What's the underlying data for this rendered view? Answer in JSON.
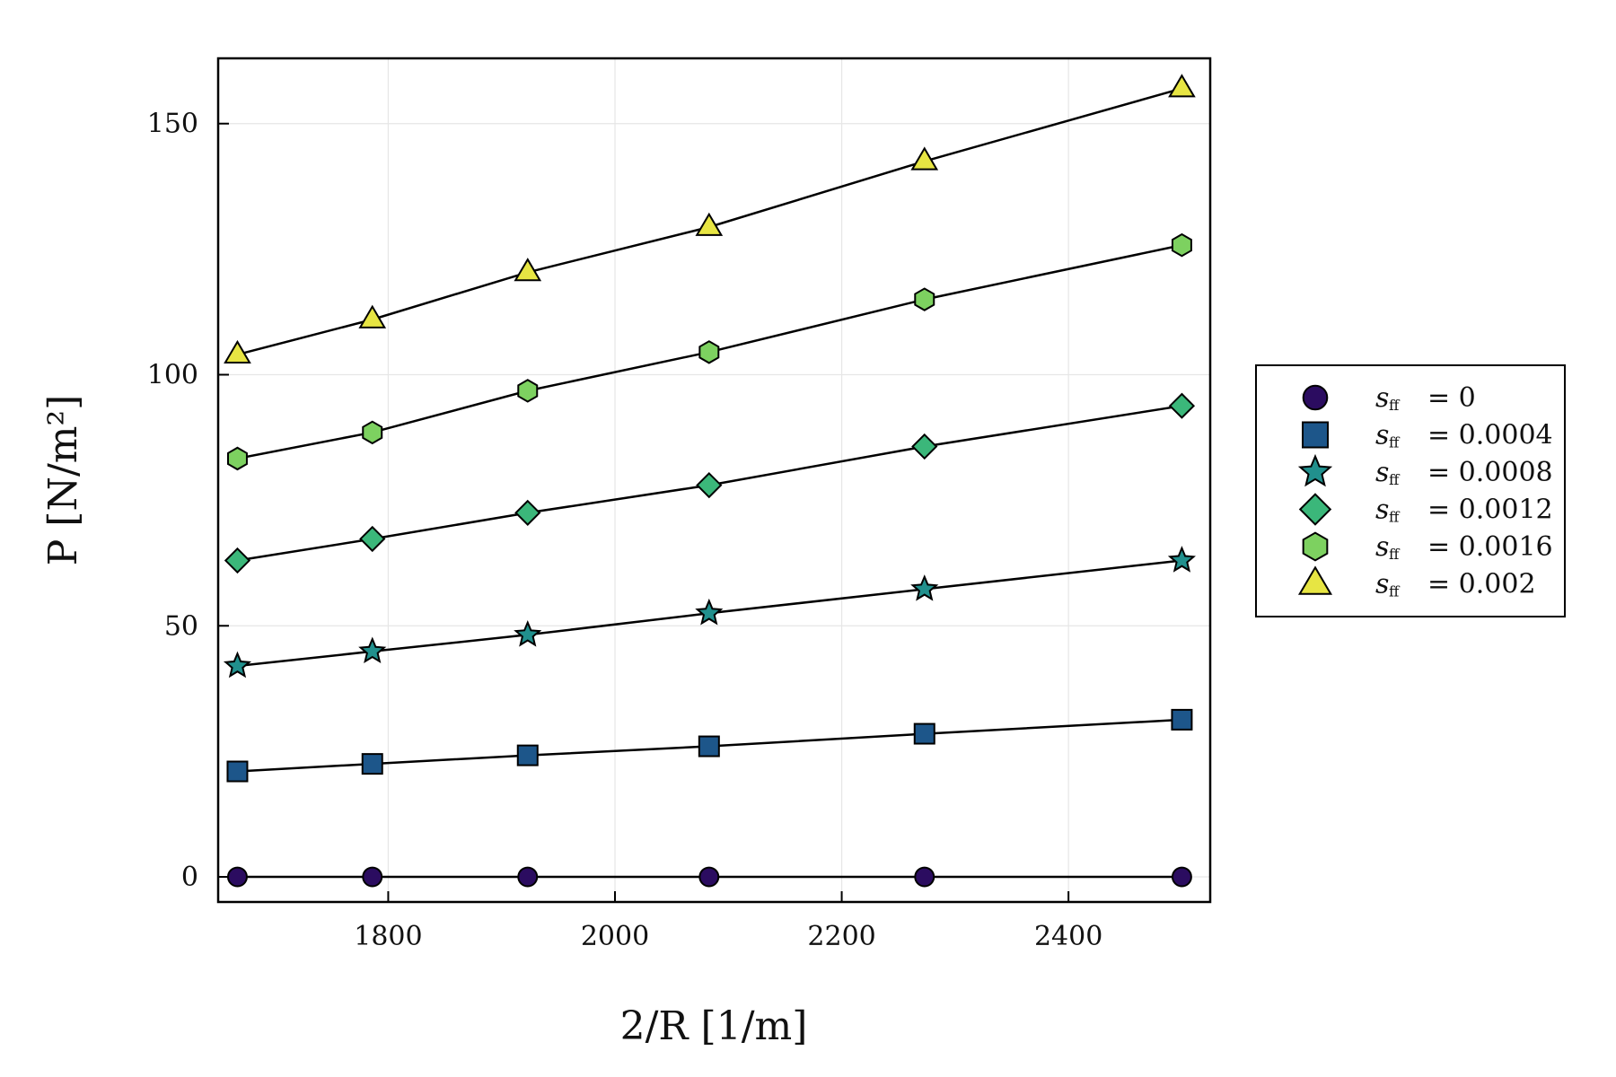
{
  "chart_data": {
    "type": "scatter",
    "xlabel": "2/R  [1/m]",
    "ylabel": "P  [N/m²]",
    "xlim": [
      1650,
      2525
    ],
    "ylim": [
      -5,
      163
    ],
    "xticks": [
      1800,
      2000,
      2200,
      2400
    ],
    "yticks": [
      0,
      50,
      100,
      150
    ],
    "grid": true,
    "legend_position": "outside-right",
    "x": [
      1667,
      1786,
      1923,
      2083,
      2273,
      2500
    ],
    "series": [
      {
        "name": "s_ff = 0",
        "legend_var": "s",
        "legend_sub": "ff",
        "legend_val": "= 0",
        "marker": "circle",
        "color": "#2b0c60",
        "values": [
          0,
          0,
          0,
          0,
          0,
          0
        ]
      },
      {
        "name": "s_ff = 0.0004",
        "legend_var": "s",
        "legend_sub": "ff",
        "legend_val": "= 0.0004",
        "marker": "square",
        "color": "#1d568a",
        "values": [
          21,
          22.5,
          24.2,
          26,
          28.5,
          31.3
        ]
      },
      {
        "name": "s_ff = 0.0008",
        "legend_var": "s",
        "legend_sub": "ff",
        "legend_val": "= 0.0008",
        "marker": "star",
        "color": "#21908d",
        "values": [
          42,
          44.9,
          48.2,
          52.5,
          57.3,
          63
        ]
      },
      {
        "name": "s_ff = 0.0012",
        "legend_var": "s",
        "legend_sub": "ff",
        "legend_val": "= 0.0012",
        "marker": "diamond",
        "color": "#3bb77a",
        "values": [
          63,
          67.3,
          72.5,
          78,
          85.7,
          93.8
        ]
      },
      {
        "name": "s_ff = 0.0016",
        "legend_var": "s",
        "legend_sub": "ff",
        "legend_val": "= 0.0016",
        "marker": "hexagon",
        "color": "#7dd160",
        "values": [
          83.3,
          88.5,
          96.8,
          104.5,
          115,
          125.8
        ]
      },
      {
        "name": "s_ff = 0.002",
        "legend_var": "s",
        "legend_sub": "ff",
        "legend_val": "= 0.002",
        "marker": "triangle",
        "color": "#e7e543",
        "values": [
          104,
          111,
          120.4,
          129.4,
          142.5,
          157
        ]
      }
    ]
  }
}
